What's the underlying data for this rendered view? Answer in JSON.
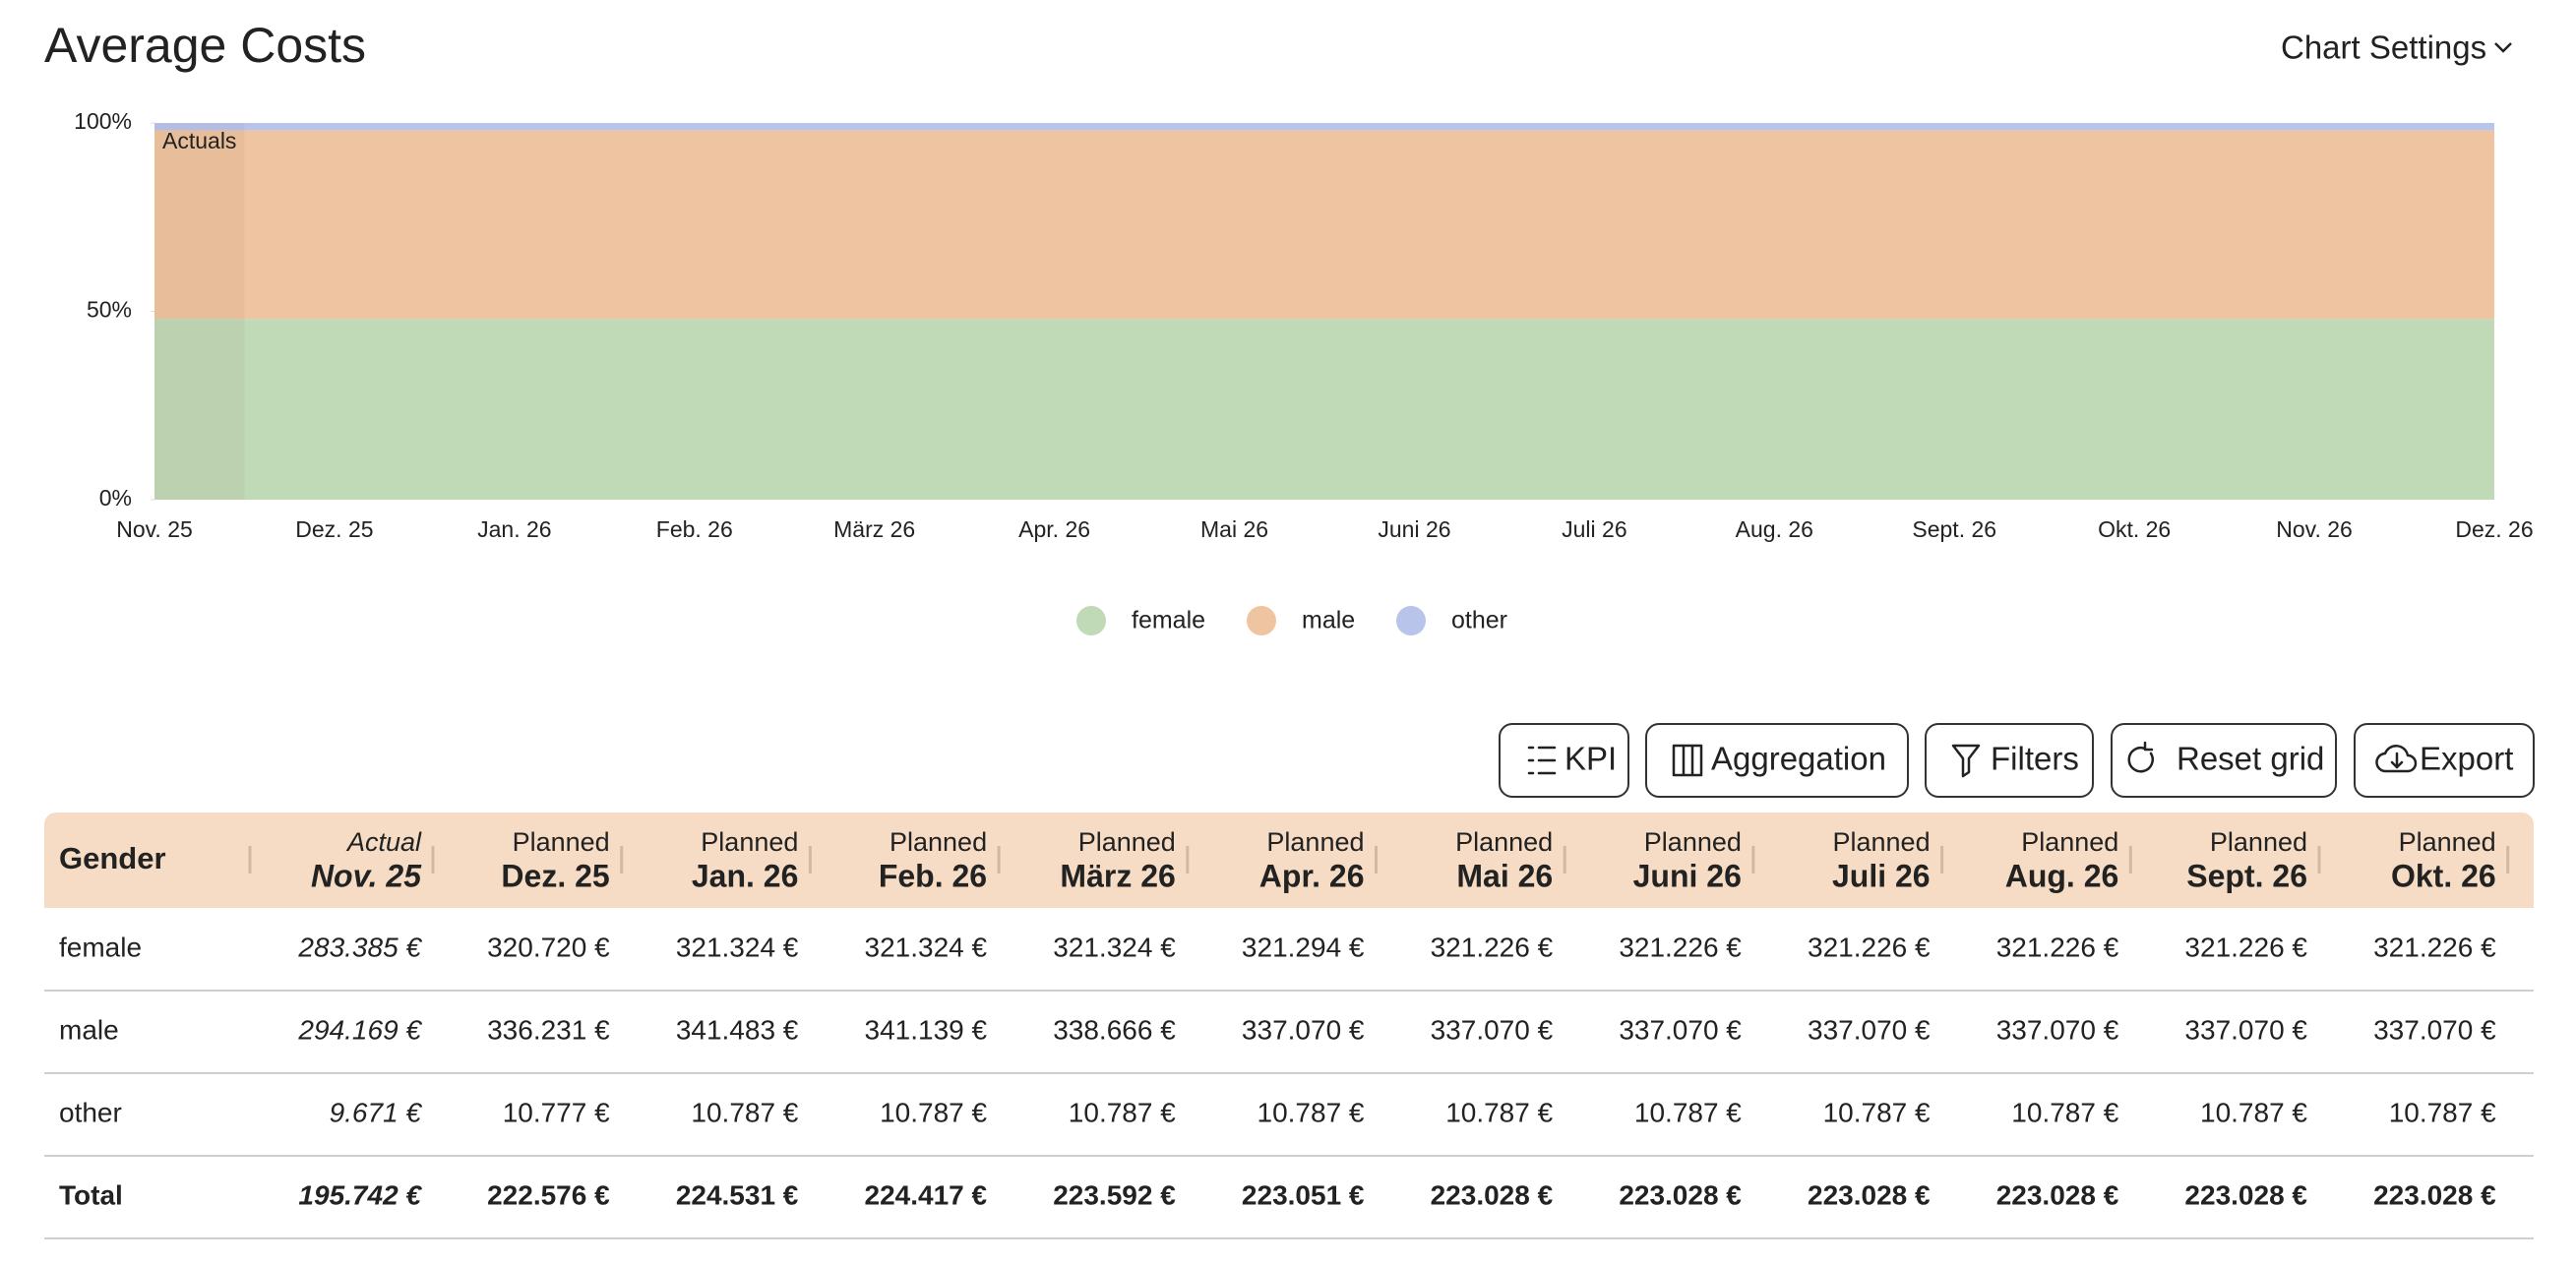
{
  "header": {
    "title": "Average Costs",
    "settings": "Chart Settings"
  },
  "chart_data": {
    "type": "area",
    "stacking": "percent",
    "categories": [
      "Nov. 25",
      "Dez. 25",
      "Jan. 26",
      "Feb. 26",
      "März 26",
      "Apr. 26",
      "Mai 26",
      "Juni 26",
      "Juli 26",
      "Aug. 26",
      "Sept. 26",
      "Okt. 26",
      "Nov. 26",
      "Dez. 26"
    ],
    "series": [
      {
        "name": "female",
        "color": "#c0d9b6",
        "values": [
          48,
          48,
          48,
          48,
          48,
          48,
          48,
          48,
          48,
          48,
          48,
          48,
          48,
          48
        ]
      },
      {
        "name": "male",
        "color": "#efc4a0",
        "values": [
          50,
          50,
          50,
          50,
          50,
          50,
          50,
          50,
          50,
          50,
          50,
          50,
          50,
          50
        ]
      },
      {
        "name": "other",
        "color": "#b9c4ea",
        "values": [
          2,
          2,
          2,
          2,
          2,
          2,
          2,
          2,
          2,
          2,
          2,
          2,
          2,
          2
        ]
      }
    ],
    "ylim": [
      0,
      100
    ],
    "yticks": [
      {
        "value": 0,
        "label": "0%"
      },
      {
        "value": 50,
        "label": "50%"
      },
      {
        "value": 100,
        "label": "100%"
      }
    ],
    "annotation": "Actuals",
    "legend": "bottom"
  },
  "toolbar": {
    "buttons": [
      "KPI",
      "Aggregation",
      "Filters",
      "Reset grid",
      "Export"
    ]
  },
  "table": {
    "header": "Gender",
    "columns": [
      {
        "kind": "Actual",
        "period": "Nov. 25"
      },
      {
        "kind": "Planned",
        "period": "Dez. 25"
      },
      {
        "kind": "Planned",
        "period": "Jan. 26"
      },
      {
        "kind": "Planned",
        "period": "Feb. 26"
      },
      {
        "kind": "Planned",
        "period": "März 26"
      },
      {
        "kind": "Planned",
        "period": "Apr. 26"
      },
      {
        "kind": "Planned",
        "period": "Mai 26"
      },
      {
        "kind": "Planned",
        "period": "Juni 26"
      },
      {
        "kind": "Planned",
        "period": "Juli 26"
      },
      {
        "kind": "Planned",
        "period": "Aug. 26"
      },
      {
        "kind": "Planned",
        "period": "Sept. 26"
      },
      {
        "kind": "Planned",
        "period": "Okt. 26"
      }
    ],
    "rows": [
      {
        "label": "female",
        "cells": [
          "283.385 €",
          "320.720 €",
          "321.324 €",
          "321.324 €",
          "321.324 €",
          "321.294 €",
          "321.226 €",
          "321.226 €",
          "321.226 €",
          "321.226 €",
          "321.226 €",
          "321.226 €"
        ]
      },
      {
        "label": "male",
        "cells": [
          "294.169 €",
          "336.231 €",
          "341.483 €",
          "341.139 €",
          "338.666 €",
          "337.070 €",
          "337.070 €",
          "337.070 €",
          "337.070 €",
          "337.070 €",
          "337.070 €",
          "337.070 €"
        ]
      },
      {
        "label": "other",
        "cells": [
          "9.671 €",
          "10.777 €",
          "10.787 €",
          "10.787 €",
          "10.787 €",
          "10.787 €",
          "10.787 €",
          "10.787 €",
          "10.787 €",
          "10.787 €",
          "10.787 €",
          "10.787 €"
        ]
      },
      {
        "label": "Total",
        "cells": [
          "195.742 €",
          "222.576 €",
          "224.531 €",
          "224.417 €",
          "223.592 €",
          "223.051 €",
          "223.028 €",
          "223.028 €",
          "223.028 €",
          "223.028 €",
          "223.028 €",
          "223.028 €"
        ]
      }
    ]
  }
}
